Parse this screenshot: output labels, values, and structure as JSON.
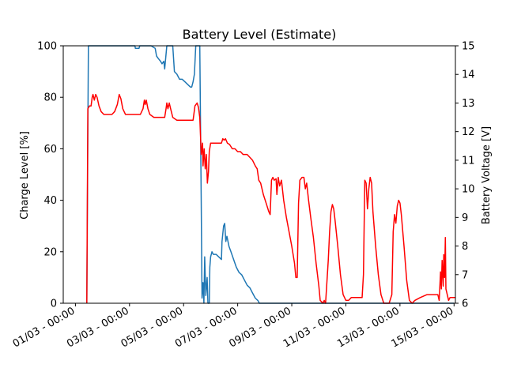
{
  "chart_data": {
    "type": "line",
    "title": "Battery Level (Estimate)",
    "ylabel": "Charge Level [%]",
    "y2label": "Battery Voltage [V]",
    "xlabel": "",
    "grid": false,
    "ylim": [
      0,
      100
    ],
    "y2lim": [
      6,
      15
    ],
    "xlim_days": [
      0.55,
      15.05
    ],
    "x_tick_values_days": [
      1,
      3,
      5,
      7,
      9,
      11,
      13,
      15
    ],
    "x_tick_labels": [
      "01/03 - 00:00",
      "03/03 - 00:00",
      "05/03 - 00:00",
      "07/03 - 00:00",
      "09/03 - 00:00",
      "11/03 - 00:00",
      "13/03 - 00:00",
      "15/03 - 00:00"
    ],
    "y_ticks": [
      0,
      20,
      40,
      60,
      80,
      100
    ],
    "y2_ticks": [
      6,
      7,
      8,
      9,
      10,
      11,
      12,
      13,
      14,
      15
    ],
    "series": [
      {
        "axis": "left",
        "color": "#1f77b4",
        "points": [
          [
            1.42,
            0
          ],
          [
            1.48,
            100
          ],
          [
            2.2,
            100
          ],
          [
            3.2,
            100
          ],
          [
            3.22,
            99
          ],
          [
            3.35,
            99
          ],
          [
            3.38,
            100
          ],
          [
            3.8,
            100
          ],
          [
            3.95,
            99
          ],
          [
            4.0,
            96
          ],
          [
            4.07,
            95
          ],
          [
            4.15,
            94
          ],
          [
            4.2,
            93
          ],
          [
            4.27,
            94
          ],
          [
            4.3,
            91
          ],
          [
            4.38,
            100
          ],
          [
            4.6,
            100
          ],
          [
            4.66,
            90
          ],
          [
            4.75,
            89
          ],
          [
            4.85,
            87
          ],
          [
            4.95,
            87
          ],
          [
            5.05,
            86
          ],
          [
            5.15,
            85
          ],
          [
            5.25,
            84
          ],
          [
            5.3,
            84
          ],
          [
            5.35,
            86
          ],
          [
            5.4,
            89
          ],
          [
            5.45,
            100
          ],
          [
            5.6,
            100
          ],
          [
            5.65,
            40
          ],
          [
            5.68,
            2
          ],
          [
            5.72,
            8
          ],
          [
            5.75,
            0
          ],
          [
            5.78,
            18
          ],
          [
            5.82,
            3
          ],
          [
            5.87,
            10
          ],
          [
            5.9,
            0
          ],
          [
            5.95,
            0
          ],
          [
            5.97,
            14
          ],
          [
            6.0,
            18
          ],
          [
            6.05,
            20
          ],
          [
            6.1,
            19
          ],
          [
            6.2,
            19
          ],
          [
            6.3,
            18
          ],
          [
            6.4,
            17
          ],
          [
            6.42,
            24
          ],
          [
            6.48,
            30
          ],
          [
            6.52,
            31
          ],
          [
            6.56,
            24
          ],
          [
            6.6,
            26
          ],
          [
            6.68,
            22
          ],
          [
            6.75,
            20
          ],
          [
            6.85,
            17
          ],
          [
            6.95,
            14
          ],
          [
            7.05,
            12
          ],
          [
            7.15,
            11
          ],
          [
            7.25,
            9
          ],
          [
            7.35,
            7
          ],
          [
            7.45,
            6
          ],
          [
            7.55,
            4
          ],
          [
            7.65,
            2
          ],
          [
            7.75,
            1
          ],
          [
            7.8,
            0
          ],
          [
            9.0,
            0
          ],
          [
            11.0,
            0
          ],
          [
            13.0,
            0
          ],
          [
            15.0,
            0
          ]
        ]
      },
      {
        "axis": "right",
        "color": "#ff0000",
        "points": [
          [
            1.42,
            6.0
          ],
          [
            1.46,
            12.8
          ],
          [
            1.52,
            12.9
          ],
          [
            1.58,
            12.9
          ],
          [
            1.62,
            13.2
          ],
          [
            1.65,
            13.3
          ],
          [
            1.7,
            13.1
          ],
          [
            1.75,
            13.3
          ],
          [
            1.8,
            13.2
          ],
          [
            1.87,
            12.9
          ],
          [
            1.95,
            12.7
          ],
          [
            2.05,
            12.6
          ],
          [
            2.15,
            12.6
          ],
          [
            2.25,
            12.6
          ],
          [
            2.35,
            12.6
          ],
          [
            2.45,
            12.7
          ],
          [
            2.55,
            12.95
          ],
          [
            2.62,
            13.3
          ],
          [
            2.68,
            13.15
          ],
          [
            2.75,
            12.8
          ],
          [
            2.85,
            12.6
          ],
          [
            3.0,
            12.6
          ],
          [
            3.2,
            12.6
          ],
          [
            3.4,
            12.6
          ],
          [
            3.5,
            12.8
          ],
          [
            3.55,
            13.1
          ],
          [
            3.58,
            12.95
          ],
          [
            3.62,
            13.1
          ],
          [
            3.68,
            12.8
          ],
          [
            3.75,
            12.6
          ],
          [
            3.9,
            12.5
          ],
          [
            4.1,
            12.5
          ],
          [
            4.3,
            12.5
          ],
          [
            4.35,
            12.8
          ],
          [
            4.38,
            13.0
          ],
          [
            4.42,
            12.8
          ],
          [
            4.47,
            13.0
          ],
          [
            4.52,
            12.8
          ],
          [
            4.6,
            12.5
          ],
          [
            4.75,
            12.4
          ],
          [
            5.0,
            12.4
          ],
          [
            5.35,
            12.4
          ],
          [
            5.42,
            12.9
          ],
          [
            5.5,
            13.0
          ],
          [
            5.55,
            12.85
          ],
          [
            5.6,
            12.5
          ],
          [
            5.65,
            11.2
          ],
          [
            5.7,
            11.6
          ],
          [
            5.72,
            10.8
          ],
          [
            5.76,
            11.4
          ],
          [
            5.8,
            10.7
          ],
          [
            5.84,
            11.2
          ],
          [
            5.88,
            10.2
          ],
          [
            5.92,
            10.6
          ],
          [
            5.95,
            11.3
          ],
          [
            6.0,
            11.6
          ],
          [
            6.2,
            11.6
          ],
          [
            6.4,
            11.6
          ],
          [
            6.45,
            11.75
          ],
          [
            6.5,
            11.7
          ],
          [
            6.55,
            11.75
          ],
          [
            6.62,
            11.6
          ],
          [
            6.7,
            11.55
          ],
          [
            6.8,
            11.4
          ],
          [
            6.9,
            11.4
          ],
          [
            7.0,
            11.3
          ],
          [
            7.1,
            11.3
          ],
          [
            7.2,
            11.2
          ],
          [
            7.35,
            11.2
          ],
          [
            7.45,
            11.1
          ],
          [
            7.55,
            11.0
          ],
          [
            7.65,
            10.8
          ],
          [
            7.72,
            10.7
          ],
          [
            7.78,
            10.3
          ],
          [
            7.85,
            10.2
          ],
          [
            7.95,
            9.8
          ],
          [
            8.05,
            9.5
          ],
          [
            8.15,
            9.2
          ],
          [
            8.2,
            9.1
          ],
          [
            8.25,
            10.3
          ],
          [
            8.3,
            10.4
          ],
          [
            8.35,
            10.3
          ],
          [
            8.42,
            10.35
          ],
          [
            8.45,
            9.8
          ],
          [
            8.5,
            10.4
          ],
          [
            8.55,
            10.1
          ],
          [
            8.62,
            10.3
          ],
          [
            8.7,
            9.6
          ],
          [
            8.8,
            9.0
          ],
          [
            8.9,
            8.5
          ],
          [
            9.0,
            8.0
          ],
          [
            9.1,
            7.4
          ],
          [
            9.15,
            6.9
          ],
          [
            9.2,
            6.9
          ],
          [
            9.25,
            9.5
          ],
          [
            9.3,
            10.3
          ],
          [
            9.38,
            10.4
          ],
          [
            9.45,
            10.4
          ],
          [
            9.5,
            10.0
          ],
          [
            9.55,
            10.2
          ],
          [
            9.62,
            9.6
          ],
          [
            9.7,
            9.0
          ],
          [
            9.8,
            8.3
          ],
          [
            9.9,
            7.4
          ],
          [
            10.0,
            6.6
          ],
          [
            10.05,
            6.1
          ],
          [
            10.15,
            6.0
          ],
          [
            10.2,
            6.1
          ],
          [
            10.25,
            6.0
          ],
          [
            10.35,
            7.5
          ],
          [
            10.4,
            8.5
          ],
          [
            10.45,
            9.2
          ],
          [
            10.5,
            9.45
          ],
          [
            10.55,
            9.3
          ],
          [
            10.6,
            8.9
          ],
          [
            10.7,
            8.0
          ],
          [
            10.8,
            7.0
          ],
          [
            10.9,
            6.3
          ],
          [
            11.0,
            6.1
          ],
          [
            11.1,
            6.1
          ],
          [
            11.2,
            6.2
          ],
          [
            11.4,
            6.2
          ],
          [
            11.6,
            6.2
          ],
          [
            11.65,
            7.0
          ],
          [
            11.7,
            10.3
          ],
          [
            11.75,
            10.2
          ],
          [
            11.8,
            9.3
          ],
          [
            11.85,
            10.0
          ],
          [
            11.9,
            10.4
          ],
          [
            11.95,
            10.2
          ],
          [
            12.0,
            9.2
          ],
          [
            12.1,
            8.0
          ],
          [
            12.2,
            7.0
          ],
          [
            12.3,
            6.3
          ],
          [
            12.4,
            6.0
          ],
          [
            12.6,
            6.0
          ],
          [
            12.7,
            6.3
          ],
          [
            12.75,
            8.5
          ],
          [
            12.8,
            9.1
          ],
          [
            12.85,
            8.8
          ],
          [
            12.9,
            9.4
          ],
          [
            12.95,
            9.6
          ],
          [
            13.0,
            9.5
          ],
          [
            13.05,
            9.1
          ],
          [
            13.15,
            8.0
          ],
          [
            13.25,
            6.8
          ],
          [
            13.35,
            6.1
          ],
          [
            13.45,
            6.0
          ],
          [
            13.55,
            6.1
          ],
          [
            13.75,
            6.2
          ],
          [
            14.0,
            6.3
          ],
          [
            14.25,
            6.3
          ],
          [
            14.4,
            6.3
          ],
          [
            14.45,
            6.1
          ],
          [
            14.5,
            7.1
          ],
          [
            14.53,
            6.5
          ],
          [
            14.56,
            7.5
          ],
          [
            14.6,
            6.6
          ],
          [
            14.62,
            7.7
          ],
          [
            14.65,
            6.9
          ],
          [
            14.68,
            8.3
          ],
          [
            14.7,
            6.5
          ],
          [
            14.75,
            6.3
          ],
          [
            14.8,
            6.1
          ],
          [
            14.85,
            6.2
          ],
          [
            15.05,
            6.2
          ]
        ]
      }
    ]
  }
}
